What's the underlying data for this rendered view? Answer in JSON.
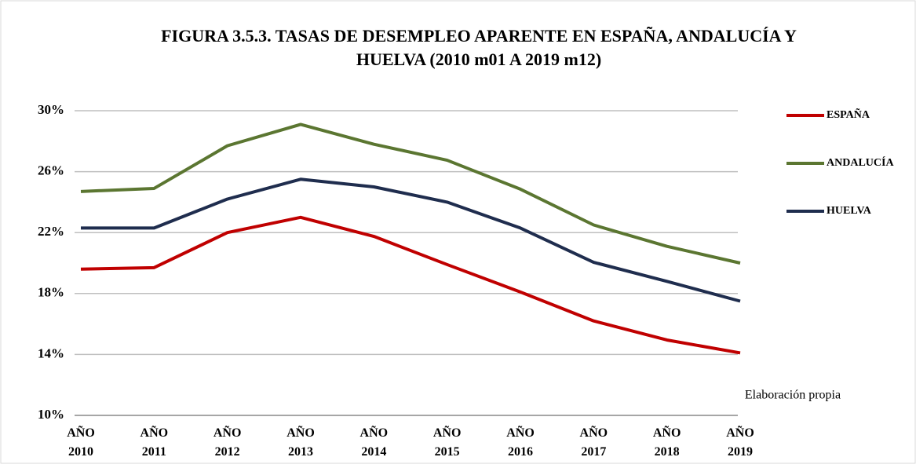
{
  "chart_data": {
    "type": "line",
    "title": [
      "FIGURA 3.5.3.  TASAS DE DESEMPLEO  APARENTE EN ESPAÑA, ANDALUCÍA Y",
      "HUELVA (2010 m01 A 2019 m12)"
    ],
    "categories": [
      "AÑO 2010",
      "AÑO 2011",
      "AÑO 2012",
      "AÑO 2013",
      "AÑO 2014",
      "AÑO 2015",
      "AÑO 2016",
      "AÑO 2017",
      "AÑO 2018",
      "AÑO 2019"
    ],
    "series": [
      {
        "name": "ESPAÑA",
        "color": "#c00000",
        "values": [
          19.6,
          19.7,
          22.0,
          23.0,
          21.75,
          19.9,
          18.1,
          16.2,
          14.95,
          14.1
        ]
      },
      {
        "name": "ANDALUCÍA",
        "color": "#5b7631",
        "values": [
          24.7,
          24.9,
          27.7,
          29.1,
          27.8,
          26.75,
          24.85,
          22.5,
          21.1,
          20.0
        ]
      },
      {
        "name": "HUELVA",
        "color": "#1f2d4e",
        "values": [
          22.3,
          22.3,
          24.2,
          25.5,
          25.0,
          24.0,
          22.3,
          20.05,
          18.8,
          17.5
        ]
      }
    ],
    "ylim": [
      10,
      30
    ],
    "yticks": [
      {
        "value": 10,
        "label": "10%"
      },
      {
        "value": 14,
        "label": "14%"
      },
      {
        "value": 18,
        "label": "18%"
      },
      {
        "value": 22,
        "label": "22%"
      },
      {
        "value": 26,
        "label": "26%"
      },
      {
        "value": 30,
        "label": "30%"
      }
    ],
    "grid": true,
    "legend": "right",
    "annotation": "Elaboración propia"
  }
}
